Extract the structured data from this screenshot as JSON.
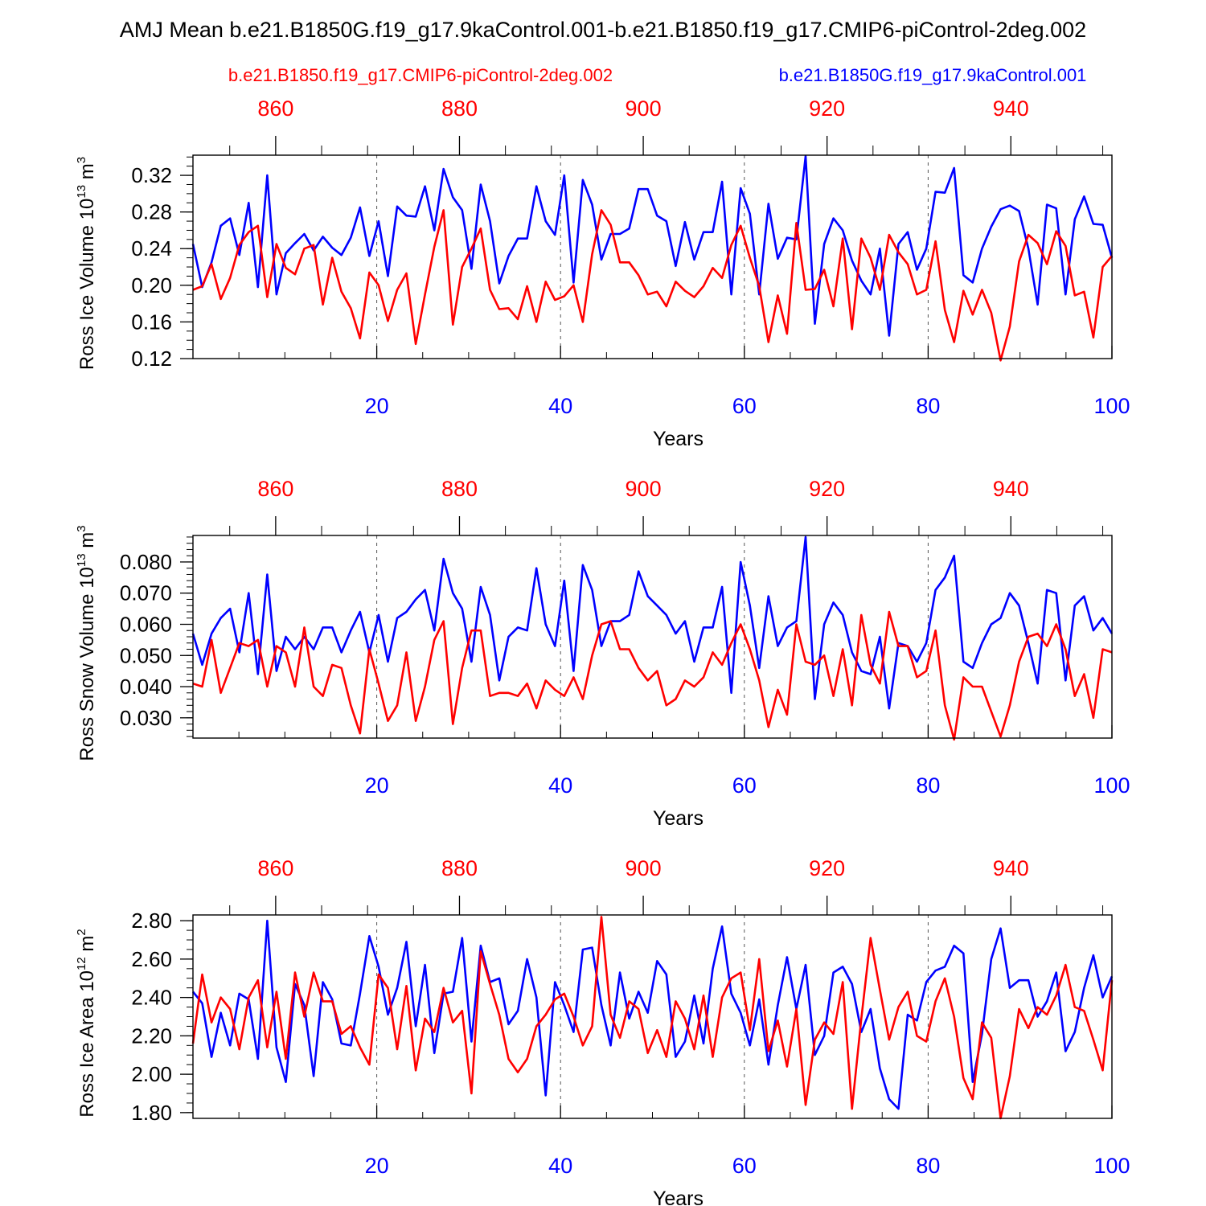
{
  "title": "AMJ Mean b.e21.B1850G.f19_g17.9kaControl.001-b.e21.B1850.f19_g17.CMIP6-piControl-2deg.002",
  "legend": {
    "red_label": "b.e21.B1850.f19_g17.CMIP6-piControl-2deg.002",
    "blue_label": "b.e21.B1850G.f19_g17.9kaControl.001"
  },
  "colors": {
    "red": "#ff0000",
    "blue": "#0000ff",
    "axis": "#000000",
    "grid": "#555555"
  },
  "chart_data": [
    {
      "type": "line",
      "ylabel_main": "Ross Ice Volume 10",
      "ylabel_exp": "13",
      "ylabel_unit": " m",
      "ylabel_unit_exp": "3",
      "xlabel": "Years",
      "xlim": [
        0,
        100
      ],
      "ylim": [
        0.12,
        0.342
      ],
      "yticks": [
        0.12,
        0.16,
        0.2,
        0.24,
        0.28,
        0.32
      ],
      "yticklabels": [
        "0.12",
        "0.16",
        "0.20",
        "0.24",
        "0.28",
        "0.32"
      ],
      "ytick_step": 0.01,
      "bottom_xticks": [
        20,
        40,
        60,
        80,
        100
      ],
      "bottom_xticklabels": [
        "20",
        "40",
        "60",
        "80",
        "100"
      ],
      "top_xticklabels": [
        "860",
        "880",
        "900",
        "920",
        "940"
      ],
      "top_xtick_positions": [
        9,
        29,
        49,
        69,
        89
      ],
      "series": [
        {
          "name": "b.e21.B1850G.f19_g17.9kaControl.001",
          "color": "blue",
          "values": [
            0.245,
            0.198,
            0.225,
            0.265,
            0.273,
            0.233,
            0.29,
            0.198,
            0.32,
            0.19,
            0.235,
            0.246,
            0.256,
            0.238,
            0.253,
            0.241,
            0.233,
            0.252,
            0.285,
            0.232,
            0.27,
            0.21,
            0.286,
            0.276,
            0.275,
            0.308,
            0.26,
            0.327,
            0.296,
            0.282,
            0.218,
            0.31,
            0.27,
            0.202,
            0.232,
            0.251,
            0.251,
            0.308,
            0.27,
            0.255,
            0.32,
            0.203,
            0.315,
            0.288,
            0.228,
            0.256,
            0.256,
            0.262,
            0.305,
            0.305,
            0.276,
            0.27,
            0.221,
            0.269,
            0.228,
            0.258,
            0.258,
            0.313,
            0.19,
            0.306,
            0.278,
            0.19,
            0.289,
            0.229,
            0.252,
            0.25,
            0.341,
            0.158,
            0.245,
            0.273,
            0.26,
            0.227,
            0.205,
            0.19,
            0.24,
            0.145,
            0.245,
            0.258,
            0.217,
            0.24,
            0.302,
            0.301,
            0.328,
            0.211,
            0.203,
            0.24,
            0.264,
            0.283,
            0.287,
            0.281,
            0.24,
            0.179,
            0.288,
            0.284,
            0.19,
            0.272,
            0.297,
            0.267,
            0.266,
            0.23
          ]
        },
        {
          "name": "b.e21.B1850.f19_g17.CMIP6-piControl-2deg.002",
          "color": "red",
          "values": [
            0.195,
            0.199,
            0.223,
            0.185,
            0.208,
            0.244,
            0.258,
            0.265,
            0.187,
            0.245,
            0.219,
            0.212,
            0.24,
            0.244,
            0.179,
            0.23,
            0.193,
            0.175,
            0.142,
            0.214,
            0.2,
            0.161,
            0.195,
            0.213,
            0.136,
            0.19,
            0.242,
            0.282,
            0.157,
            0.22,
            0.24,
            0.262,
            0.195,
            0.174,
            0.175,
            0.163,
            0.199,
            0.16,
            0.204,
            0.184,
            0.188,
            0.2,
            0.16,
            0.234,
            0.282,
            0.266,
            0.225,
            0.225,
            0.211,
            0.19,
            0.193,
            0.177,
            0.204,
            0.194,
            0.187,
            0.199,
            0.219,
            0.208,
            0.244,
            0.265,
            0.23,
            0.199,
            0.138,
            0.189,
            0.147,
            0.268,
            0.195,
            0.196,
            0.217,
            0.177,
            0.251,
            0.152,
            0.251,
            0.23,
            0.195,
            0.255,
            0.236,
            0.223,
            0.19,
            0.195,
            0.248,
            0.173,
            0.138,
            0.194,
            0.168,
            0.195,
            0.17,
            0.118,
            0.155,
            0.226,
            0.255,
            0.246,
            0.223,
            0.259,
            0.243,
            0.189,
            0.193,
            0.143,
            0.22,
            0.232
          ]
        }
      ]
    },
    {
      "type": "line",
      "ylabel_main": "Ross Snow Volume 10",
      "ylabel_exp": "13",
      "ylabel_unit": " m",
      "ylabel_unit_exp": "3",
      "xlabel": "Years",
      "xlim": [
        0,
        100
      ],
      "ylim": [
        0.0235,
        0.0885
      ],
      "yticks": [
        0.03,
        0.04,
        0.05,
        0.06,
        0.07,
        0.08
      ],
      "yticklabels": [
        "0.030",
        "0.040",
        "0.050",
        "0.060",
        "0.070",
        "0.080"
      ],
      "ytick_step": 0.002,
      "bottom_xticks": [
        20,
        40,
        60,
        80,
        100
      ],
      "bottom_xticklabels": [
        "20",
        "40",
        "60",
        "80",
        "100"
      ],
      "top_xticklabels": [
        "860",
        "880",
        "900",
        "920",
        "940"
      ],
      "top_xtick_positions": [
        9,
        29,
        49,
        69,
        89
      ],
      "series": [
        {
          "name": "b.e21.B1850G.f19_g17.9kaControl.001",
          "color": "blue",
          "values": [
            0.057,
            0.047,
            0.057,
            0.062,
            0.065,
            0.051,
            0.07,
            0.044,
            0.076,
            0.045,
            0.056,
            0.052,
            0.056,
            0.052,
            0.059,
            0.059,
            0.051,
            0.058,
            0.064,
            0.051,
            0.063,
            0.048,
            0.062,
            0.064,
            0.068,
            0.071,
            0.058,
            0.081,
            0.07,
            0.065,
            0.048,
            0.072,
            0.063,
            0.042,
            0.056,
            0.059,
            0.058,
            0.078,
            0.06,
            0.053,
            0.074,
            0.045,
            0.079,
            0.071,
            0.053,
            0.061,
            0.061,
            0.063,
            0.077,
            0.069,
            0.066,
            0.063,
            0.057,
            0.061,
            0.048,
            0.059,
            0.059,
            0.072,
            0.038,
            0.08,
            0.066,
            0.046,
            0.069,
            0.053,
            0.059,
            0.061,
            0.088,
            0.036,
            0.06,
            0.067,
            0.063,
            0.051,
            0.045,
            0.044,
            0.056,
            0.033,
            0.054,
            0.053,
            0.048,
            0.054,
            0.071,
            0.075,
            0.082,
            0.048,
            0.046,
            0.054,
            0.06,
            0.062,
            0.07,
            0.066,
            0.054,
            0.041,
            0.071,
            0.07,
            0.042,
            0.066,
            0.069,
            0.058,
            0.062,
            0.057
          ]
        },
        {
          "name": "b.e21.B1850.f19_g17.CMIP6-piControl-2deg.002",
          "color": "red",
          "values": [
            0.041,
            0.04,
            0.055,
            0.038,
            0.046,
            0.054,
            0.053,
            0.055,
            0.04,
            0.053,
            0.051,
            0.04,
            0.059,
            0.04,
            0.037,
            0.047,
            0.046,
            0.034,
            0.025,
            0.052,
            0.041,
            0.029,
            0.034,
            0.051,
            0.029,
            0.04,
            0.055,
            0.061,
            0.028,
            0.046,
            0.058,
            0.058,
            0.037,
            0.038,
            0.038,
            0.037,
            0.041,
            0.033,
            0.042,
            0.039,
            0.037,
            0.043,
            0.036,
            0.05,
            0.06,
            0.061,
            0.052,
            0.052,
            0.046,
            0.042,
            0.045,
            0.034,
            0.036,
            0.042,
            0.04,
            0.043,
            0.051,
            0.047,
            0.054,
            0.06,
            0.052,
            0.042,
            0.027,
            0.039,
            0.031,
            0.06,
            0.048,
            0.047,
            0.05,
            0.037,
            0.052,
            0.034,
            0.063,
            0.047,
            0.041,
            0.064,
            0.053,
            0.053,
            0.043,
            0.045,
            0.058,
            0.034,
            0.023,
            0.043,
            0.04,
            0.04,
            0.032,
            0.024,
            0.034,
            0.048,
            0.056,
            0.057,
            0.053,
            0.06,
            0.052,
            0.037,
            0.044,
            0.03,
            0.052,
            0.051
          ]
        }
      ]
    },
    {
      "type": "line",
      "ylabel_main": "Ross Ice Area 10",
      "ylabel_exp": "12",
      "ylabel_unit": " m",
      "ylabel_unit_exp": "2",
      "xlabel": "Years",
      "xlim": [
        0,
        100
      ],
      "ylim": [
        1.77,
        2.83
      ],
      "yticks": [
        1.8,
        2.0,
        2.2,
        2.4,
        2.6,
        2.8
      ],
      "yticklabels": [
        "1.80",
        "2.00",
        "2.20",
        "2.40",
        "2.60",
        "2.80"
      ],
      "ytick_step": 0.05,
      "bottom_xticks": [
        20,
        40,
        60,
        80,
        100
      ],
      "bottom_xticklabels": [
        "20",
        "40",
        "60",
        "80",
        "100"
      ],
      "top_xticklabels": [
        "860",
        "880",
        "900",
        "920",
        "940"
      ],
      "top_xtick_positions": [
        9,
        29,
        49,
        69,
        89
      ],
      "series": [
        {
          "name": "b.e21.B1850G.f19_g17.9kaControl.001",
          "color": "blue",
          "values": [
            2.43,
            2.37,
            2.09,
            2.32,
            2.15,
            2.42,
            2.39,
            2.08,
            2.8,
            2.14,
            1.96,
            2.47,
            2.36,
            1.99,
            2.48,
            2.39,
            2.16,
            2.15,
            2.42,
            2.72,
            2.56,
            2.31,
            2.45,
            2.69,
            2.25,
            2.57,
            2.11,
            2.42,
            2.43,
            2.71,
            2.17,
            2.67,
            2.48,
            2.5,
            2.26,
            2.33,
            2.6,
            2.4,
            1.89,
            2.48,
            2.36,
            2.22,
            2.65,
            2.66,
            2.36,
            2.15,
            2.53,
            2.29,
            2.43,
            2.32,
            2.59,
            2.52,
            2.09,
            2.17,
            2.41,
            2.16,
            2.55,
            2.77,
            2.42,
            2.32,
            2.15,
            2.39,
            2.05,
            2.36,
            2.61,
            2.34,
            2.57,
            2.1,
            2.2,
            2.53,
            2.56,
            2.47,
            2.22,
            2.34,
            2.03,
            1.87,
            1.82,
            2.31,
            2.28,
            2.48,
            2.54,
            2.56,
            2.67,
            2.63,
            1.96,
            2.21,
            2.6,
            2.76,
            2.45,
            2.49,
            2.49,
            2.3,
            2.38,
            2.53,
            2.12,
            2.22,
            2.45,
            2.62,
            2.4,
            2.51
          ]
        },
        {
          "name": "b.e21.B1850.f19_g17.CMIP6-piControl-2deg.002",
          "color": "red",
          "values": [
            2.16,
            2.52,
            2.27,
            2.4,
            2.34,
            2.13,
            2.4,
            2.49,
            2.14,
            2.43,
            2.08,
            2.53,
            2.3,
            2.53,
            2.38,
            2.38,
            2.21,
            2.25,
            2.14,
            2.05,
            2.52,
            2.45,
            2.13,
            2.46,
            2.02,
            2.29,
            2.22,
            2.45,
            2.27,
            2.33,
            1.9,
            2.64,
            2.47,
            2.31,
            2.08,
            2.01,
            2.08,
            2.25,
            2.31,
            2.39,
            2.42,
            2.3,
            2.15,
            2.25,
            2.82,
            2.31,
            2.19,
            2.38,
            2.34,
            2.11,
            2.23,
            2.09,
            2.38,
            2.29,
            2.13,
            2.41,
            2.09,
            2.4,
            2.5,
            2.53,
            2.23,
            2.6,
            2.12,
            2.28,
            2.04,
            2.34,
            1.84,
            2.18,
            2.27,
            2.21,
            2.48,
            1.82,
            2.29,
            2.71,
            2.44,
            2.18,
            2.35,
            2.43,
            2.2,
            2.17,
            2.38,
            2.5,
            2.3,
            1.98,
            1.87,
            2.27,
            2.19,
            1.77,
            1.99,
            2.34,
            2.24,
            2.35,
            2.31,
            2.41,
            2.57,
            2.35,
            2.33,
            2.18,
            2.02,
            2.49
          ]
        }
      ]
    }
  ]
}
